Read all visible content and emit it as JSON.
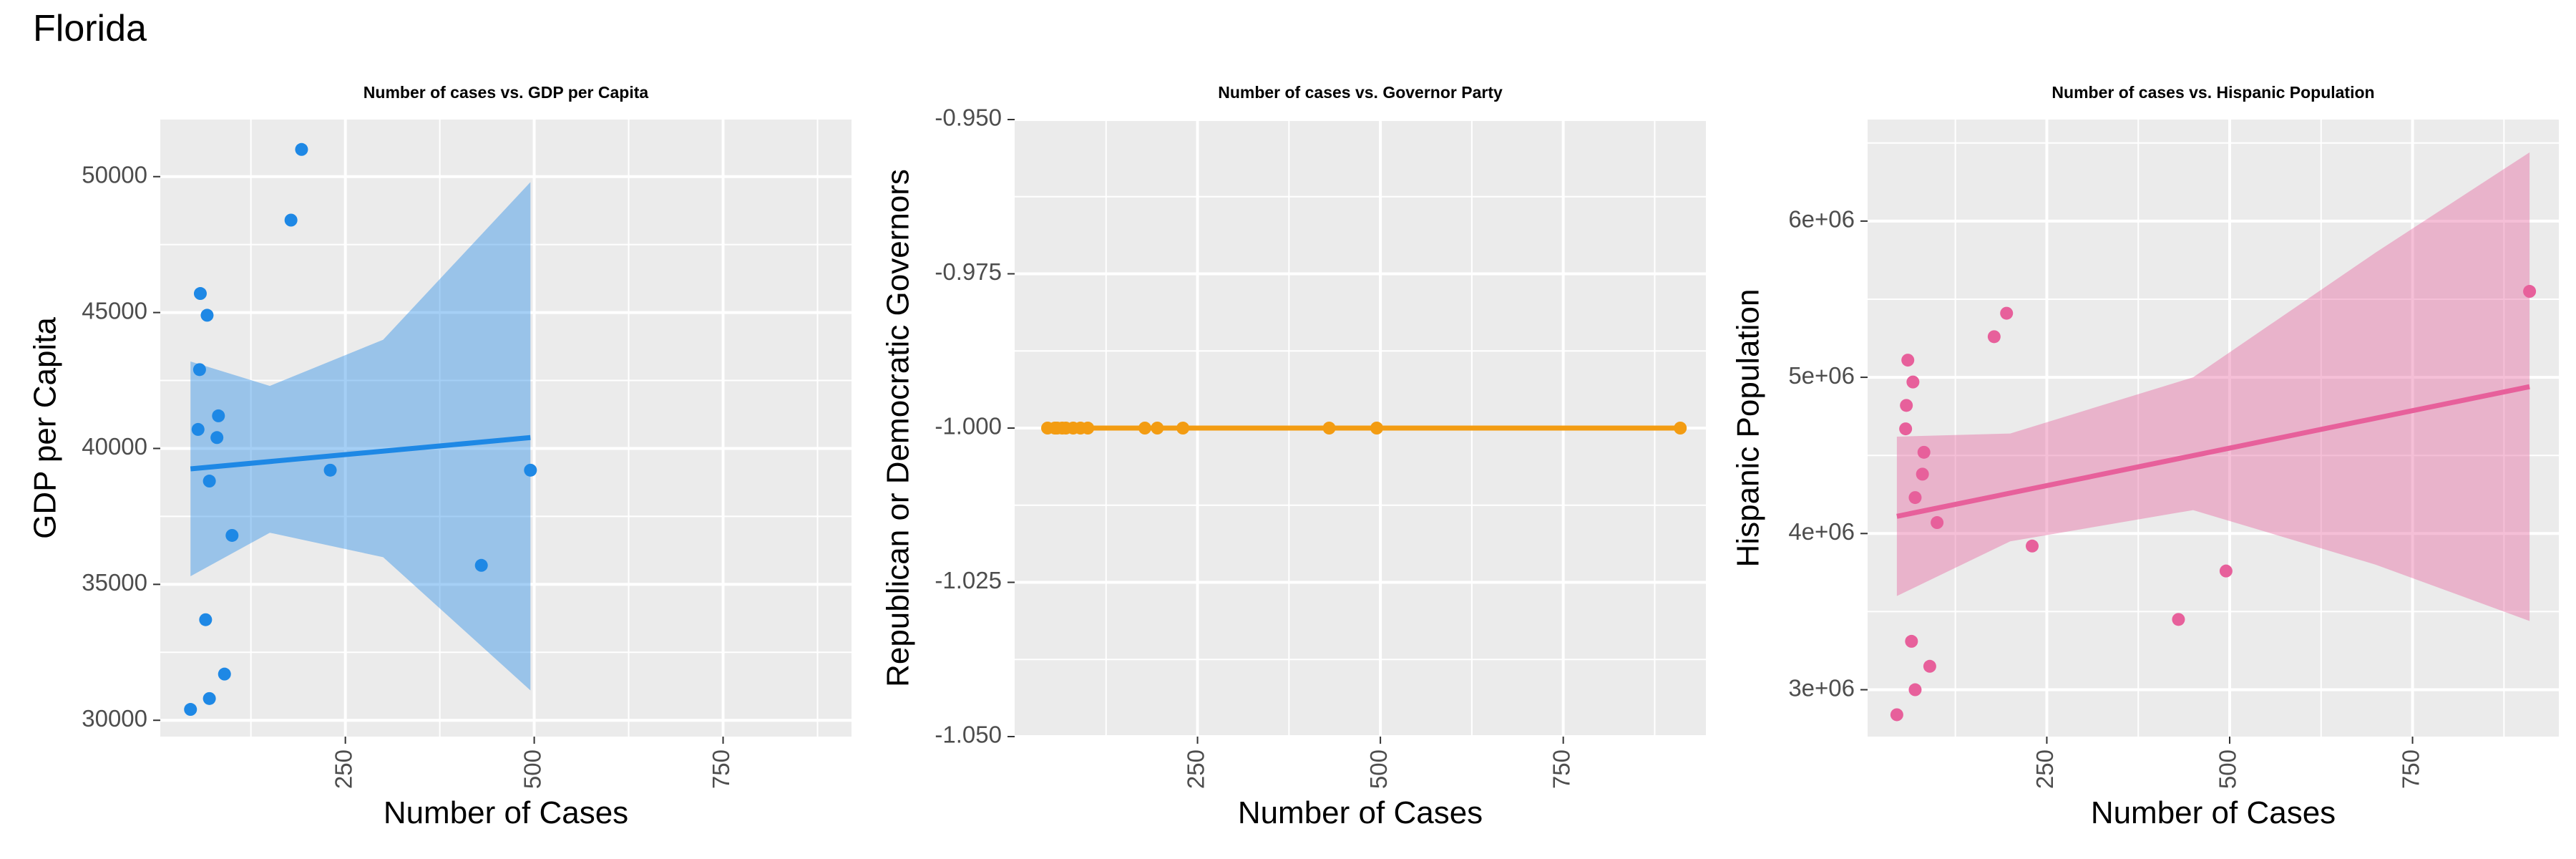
{
  "page": {
    "title": "Florida"
  },
  "colors": {
    "panel_bg": "#EBEBEB",
    "grid": "#FFFFFF",
    "tick_label": "#4D4D4D",
    "axis_title": "#000000"
  },
  "chart_data": [
    {
      "type": "scatter",
      "title": "Number of cases vs. GDP per Capita",
      "xlabel": "Number of Cases",
      "ylabel": "GDP per Capita",
      "color": "#1E88E5",
      "band_color": "#1E88E5",
      "xlim": [
        5,
        920
      ],
      "ylim": [
        29400,
        52100
      ],
      "x_ticks": [
        250,
        500,
        750
      ],
      "x_tick_labels": [
        "250",
        "500",
        "750"
      ],
      "y_ticks": [
        30000,
        35000,
        40000,
        45000,
        50000
      ],
      "y_tick_labels": [
        "30000",
        "35000",
        "40000",
        "45000",
        "50000"
      ],
      "tick_rotate_x": true,
      "points": [
        {
          "x": 45,
          "y": 30400
        },
        {
          "x": 70,
          "y": 30800
        },
        {
          "x": 90,
          "y": 31700
        },
        {
          "x": 65,
          "y": 33700
        },
        {
          "x": 100,
          "y": 36800
        },
        {
          "x": 430,
          "y": 35700
        },
        {
          "x": 230,
          "y": 39200
        },
        {
          "x": 495,
          "y": 39200
        },
        {
          "x": 70,
          "y": 38800
        },
        {
          "x": 55,
          "y": 40700
        },
        {
          "x": 80,
          "y": 40400
        },
        {
          "x": 82,
          "y": 41200
        },
        {
          "x": 57,
          "y": 42900
        },
        {
          "x": 67,
          "y": 44900
        },
        {
          "x": 58,
          "y": 45700
        },
        {
          "x": 178,
          "y": 48400
        },
        {
          "x": 192,
          "y": 51000
        }
      ],
      "fit": {
        "x": [
          45,
          495
        ],
        "y": [
          39250,
          40400
        ]
      },
      "band": {
        "x": [
          45,
          150,
          300,
          495
        ],
        "lower": [
          35300,
          36900,
          36000,
          31100
        ],
        "upper": [
          43200,
          42300,
          44000,
          49800
        ]
      }
    },
    {
      "type": "line",
      "title": "Number of cases vs. Governor Party",
      "xlabel": "Number of Cases",
      "ylabel": "Republican or Democratic Governors",
      "color": "#F39C12",
      "xlim": [
        0,
        945
      ],
      "ylim": [
        -1.05,
        -0.95
      ],
      "x_ticks": [
        250,
        500,
        750
      ],
      "x_tick_labels": [
        "250",
        "500",
        "750"
      ],
      "y_ticks": [
        -1.05,
        -1.025,
        -1.0,
        -0.975,
        -0.95
      ],
      "y_tick_labels": [
        "-1.050",
        "-1.025",
        "-1.000",
        "-0.975",
        "-0.950"
      ],
      "tick_rotate_x": true,
      "points": [
        {
          "x": 45,
          "y": -1.0
        },
        {
          "x": 55,
          "y": -1.0
        },
        {
          "x": 58,
          "y": -1.0
        },
        {
          "x": 65,
          "y": -1.0
        },
        {
          "x": 70,
          "y": -1.0
        },
        {
          "x": 80,
          "y": -1.0
        },
        {
          "x": 90,
          "y": -1.0
        },
        {
          "x": 100,
          "y": -1.0
        },
        {
          "x": 178,
          "y": -1.0
        },
        {
          "x": 195,
          "y": -1.0
        },
        {
          "x": 230,
          "y": -1.0
        },
        {
          "x": 430,
          "y": -1.0
        },
        {
          "x": 495,
          "y": -1.0
        },
        {
          "x": 910,
          "y": -1.0
        }
      ],
      "fit": {
        "x": [
          45,
          910
        ],
        "y": [
          -1.0,
          -1.0
        ]
      }
    },
    {
      "type": "scatter",
      "title": "Number of cases vs. Hispanic Population",
      "xlabel": "Number of Cases",
      "ylabel": "Hispanic Population",
      "color": "#E7609B",
      "band_color": "#E7609B",
      "xlim": [
        5,
        950
      ],
      "ylim": [
        2700000,
        6650000
      ],
      "x_ticks": [
        250,
        500,
        750
      ],
      "x_tick_labels": [
        "250",
        "500",
        "750"
      ],
      "y_ticks": [
        3000000,
        4000000,
        5000000,
        6000000
      ],
      "y_tick_labels": [
        "3e+06",
        "4e+06",
        "5e+06",
        "6e+06"
      ],
      "tick_rotate_x": true,
      "points": [
        {
          "x": 45,
          "y": 2840000
        },
        {
          "x": 70,
          "y": 3000000
        },
        {
          "x": 90,
          "y": 3150000
        },
        {
          "x": 65,
          "y": 3310000
        },
        {
          "x": 430,
          "y": 3450000
        },
        {
          "x": 495,
          "y": 3760000
        },
        {
          "x": 230,
          "y": 3920000
        },
        {
          "x": 100,
          "y": 4070000
        },
        {
          "x": 70,
          "y": 4230000
        },
        {
          "x": 80,
          "y": 4380000
        },
        {
          "x": 82,
          "y": 4520000
        },
        {
          "x": 57,
          "y": 4670000
        },
        {
          "x": 58,
          "y": 4820000
        },
        {
          "x": 67,
          "y": 4970000
        },
        {
          "x": 60,
          "y": 5110000
        },
        {
          "x": 178,
          "y": 5260000
        },
        {
          "x": 195,
          "y": 5410000
        },
        {
          "x": 910,
          "y": 5550000
        }
      ],
      "fit": {
        "x": [
          45,
          910
        ],
        "y": [
          4110000,
          4940000
        ]
      },
      "band": {
        "x": [
          45,
          200,
          450,
          700,
          910
        ],
        "lower": [
          3600000,
          3950000,
          4150000,
          3800000,
          3440000
        ],
        "upper": [
          4620000,
          4640000,
          5000000,
          5800000,
          6440000
        ]
      }
    }
  ]
}
